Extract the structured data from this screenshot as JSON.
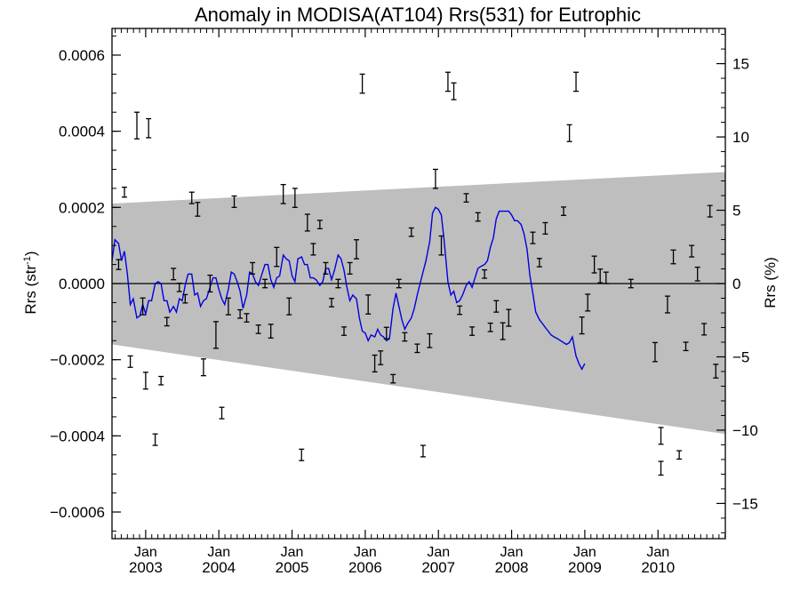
{
  "chart_data": {
    "type": "scatter",
    "title": "Anomaly in MODISA(AT104) Rrs(531) for Eutrophic",
    "ylabel_left": {
      "base": "Rrs (str",
      "sup": "-1",
      "close": ")"
    },
    "ylabel_right": "Rrs (%)",
    "xlim": [
      2002.54,
      2010.92
    ],
    "ylim": [
      -0.00067,
      0.00067
    ],
    "ylim_right": [
      -17.4,
      17.4
    ],
    "left_ticks": [
      {
        "v": 0.0006,
        "label": "0.0006"
      },
      {
        "v": 0.0004,
        "label": "0.0004"
      },
      {
        "v": 0.0002,
        "label": "0.0002"
      },
      {
        "v": 0.0,
        "label": "0.0000"
      },
      {
        "v": -0.0002,
        "label": "−0.0002"
      },
      {
        "v": -0.0004,
        "label": "−0.0004"
      },
      {
        "v": -0.0006,
        "label": "−0.0006"
      }
    ],
    "right_ticks": [
      {
        "v": 15,
        "label": "15"
      },
      {
        "v": 10,
        "label": "10"
      },
      {
        "v": 5,
        "label": "5"
      },
      {
        "v": 0,
        "label": "0"
      },
      {
        "v": -5,
        "label": "−5"
      },
      {
        "v": -10,
        "label": "−10"
      },
      {
        "v": -15,
        "label": "−15"
      }
    ],
    "x_ticks": [
      {
        "v": 2003.0,
        "month": "Jan",
        "year": "2003"
      },
      {
        "v": 2004.0,
        "month": "Jan",
        "year": "2004"
      },
      {
        "v": 2005.0,
        "month": "Jan",
        "year": "2005"
      },
      {
        "v": 2006.0,
        "month": "Jan",
        "year": "2006"
      },
      {
        "v": 2007.0,
        "month": "Jan",
        "year": "2007"
      },
      {
        "v": 2008.0,
        "month": "Jan",
        "year": "2008"
      },
      {
        "v": 2009.0,
        "month": "Jan",
        "year": "2009"
      },
      {
        "v": 2010.0,
        "month": "Jan",
        "year": "2010"
      }
    ],
    "zero_line": 0,
    "envelope": {
      "start": [
        2002.54,
        0.00021,
        -0.00016
      ],
      "end": [
        2010.92,
        0.000293,
        -0.000395
      ],
      "color": "#bebebe"
    },
    "colors": {
      "line": "#0000e0",
      "points": "#000000"
    },
    "errorbars": [
      [
        2002.63,
        5e-05,
        1.3e-05
      ],
      [
        2002.71,
        0.00024,
        1.3e-05
      ],
      [
        2002.79,
        -0.000205,
        1.5e-05
      ],
      [
        2002.88,
        0.000415,
        3.5e-05
      ],
      [
        2002.96,
        -6e-05,
        2.2e-05
      ],
      [
        2003.0,
        -0.000255,
        2.2e-05
      ],
      [
        2003.04,
        0.000408,
        2.5e-05
      ],
      [
        2003.13,
        -0.00041,
        1.5e-05
      ],
      [
        2003.21,
        -0.000255,
        1.1e-05
      ],
      [
        2003.29,
        -0.0001,
        1.1e-05
      ],
      [
        2003.38,
        2.5e-05,
        1.5e-05
      ],
      [
        2003.46,
        -1e-05,
        1.1e-05
      ],
      [
        2003.54,
        -4e-05,
        1.1e-05
      ],
      [
        2003.63,
        0.000225,
        1.5e-05
      ],
      [
        2003.71,
        0.000195,
        1.8e-05
      ],
      [
        2003.79,
        -0.00022,
        2.2e-05
      ],
      [
        2003.88,
        0.0,
        2.2e-05
      ],
      [
        2003.96,
        -0.000135,
        3.5e-05
      ],
      [
        2004.04,
        -0.00034,
        1.5e-05
      ],
      [
        2004.13,
        -6e-05,
        2.2e-05
      ],
      [
        2004.21,
        0.000215,
        1.5e-05
      ],
      [
        2004.29,
        -8e-05,
        1.1e-05
      ],
      [
        2004.38,
        -9e-05,
        1.1e-05
      ],
      [
        2004.46,
        4e-05,
        1.5e-05
      ],
      [
        2004.54,
        -0.00012,
        1.1e-05
      ],
      [
        2004.63,
        0.0,
        1.1e-05
      ],
      [
        2004.71,
        -0.000125,
        1.8e-05
      ],
      [
        2004.79,
        7e-05,
        2.5e-05
      ],
      [
        2004.88,
        0.000235,
        2.5e-05
      ],
      [
        2004.96,
        -6e-05,
        2.2e-05
      ],
      [
        2005.04,
        0.000225,
        2.5e-05
      ],
      [
        2005.13,
        -0.00045,
        1.5e-05
      ],
      [
        2005.21,
        0.00016,
        2.2e-05
      ],
      [
        2005.29,
        9e-05,
        1.5e-05
      ],
      [
        2005.38,
        0.000155,
        1.1e-05
      ],
      [
        2005.46,
        4e-05,
        1.5e-05
      ],
      [
        2005.54,
        -5e-05,
        1.1e-05
      ],
      [
        2005.63,
        0.0,
        1.1e-05
      ],
      [
        2005.71,
        -0.000125,
        1.1e-05
      ],
      [
        2005.79,
        4e-05,
        1.5e-05
      ],
      [
        2005.88,
        9e-05,
        2.5e-05
      ],
      [
        2005.96,
        0.000525,
        2.5e-05
      ],
      [
        2006.04,
        -5.5e-05,
        2.5e-05
      ],
      [
        2006.13,
        -0.00021,
        2.2e-05
      ],
      [
        2006.21,
        -0.000195,
        1.8e-05
      ],
      [
        2006.29,
        -0.00013,
        1.5e-05
      ],
      [
        2006.38,
        -0.00025,
        1.1e-05
      ],
      [
        2006.46,
        0.0,
        1.1e-05
      ],
      [
        2006.54,
        -0.00014,
        1.1e-05
      ],
      [
        2006.63,
        0.000135,
        1.1e-05
      ],
      [
        2006.71,
        -0.00017,
        1.1e-05
      ],
      [
        2006.79,
        -0.00044,
        1.5e-05
      ],
      [
        2006.88,
        -0.00015,
        1.8e-05
      ],
      [
        2006.96,
        0.000275,
        2.5e-05
      ],
      [
        2007.04,
        0.0001,
        2.5e-05
      ],
      [
        2007.13,
        0.00053,
        2.5e-05
      ],
      [
        2007.21,
        0.000505,
        2.2e-05
      ],
      [
        2007.29,
        -7e-05,
        1.1e-05
      ],
      [
        2007.38,
        0.000225,
        1.1e-05
      ],
      [
        2007.46,
        -0.000125,
        1.1e-05
      ],
      [
        2007.54,
        0.000175,
        1.1e-05
      ],
      [
        2007.63,
        2.5e-05,
        1.1e-05
      ],
      [
        2007.71,
        -0.000115,
        1.1e-05
      ],
      [
        2007.79,
        -6e-05,
        1.5e-05
      ],
      [
        2007.88,
        -0.000125,
        2.2e-05
      ],
      [
        2007.96,
        -9e-05,
        2.2e-05
      ],
      [
        2008.29,
        0.00012,
        1.5e-05
      ],
      [
        2008.38,
        5.5e-05,
        1.1e-05
      ],
      [
        2008.46,
        0.000145,
        1.5e-05
      ],
      [
        2008.71,
        0.00019,
        1.1e-05
      ],
      [
        2008.79,
        0.000395,
        2.2e-05
      ],
      [
        2008.88,
        0.00053,
        2.5e-05
      ],
      [
        2008.96,
        -0.00011,
        2.2e-05
      ],
      [
        2009.04,
        -5e-05,
        2.2e-05
      ],
      [
        2009.13,
        5e-05,
        2.2e-05
      ],
      [
        2009.21,
        2e-05,
        1.8e-05
      ],
      [
        2009.29,
        1.5e-05,
        1.5e-05
      ],
      [
        2009.63,
        0.0,
        1.1e-05
      ],
      [
        2009.96,
        -0.00018,
        2.5e-05
      ],
      [
        2010.04,
        -0.0004,
        2.2e-05
      ],
      [
        2010.04,
        -0.000485,
        1.8e-05
      ],
      [
        2010.13,
        -5.5e-05,
        2.2e-05
      ],
      [
        2010.21,
        7e-05,
        1.8e-05
      ],
      [
        2010.29,
        -0.00045,
        1.1e-05
      ],
      [
        2010.38,
        -0.000165,
        1.1e-05
      ],
      [
        2010.46,
        8.5e-05,
        1.5e-05
      ],
      [
        2010.54,
        2.5e-05,
        1.8e-05
      ],
      [
        2010.63,
        -0.00012,
        1.5e-05
      ],
      [
        2010.71,
        0.00019,
        1.5e-05
      ],
      [
        2010.79,
        -0.00023,
        1.8e-05
      ]
    ],
    "running_mean": [
      [
        2002.54,
        6e-05
      ],
      [
        2002.58,
        0.000115
      ],
      [
        2002.63,
        0.000105
      ],
      [
        2002.67,
        6e-05
      ],
      [
        2002.71,
        8.5e-05
      ],
      [
        2002.75,
        2.5e-05
      ],
      [
        2002.79,
        -5.5e-05
      ],
      [
        2002.83,
        -4e-05
      ],
      [
        2002.88,
        -9e-05
      ],
      [
        2002.92,
        -8.5e-05
      ],
      [
        2002.96,
        -5.5e-05
      ],
      [
        2003.0,
        -8e-05
      ],
      [
        2003.04,
        -4.5e-05
      ],
      [
        2003.08,
        -4.5e-05
      ],
      [
        2003.13,
        0.0
      ],
      [
        2003.17,
        5e-06
      ],
      [
        2003.21,
        0.0
      ],
      [
        2003.25,
        -4.5e-05
      ],
      [
        2003.29,
        -4.5e-05
      ],
      [
        2003.33,
        -7.5e-05
      ],
      [
        2003.38,
        -6e-05
      ],
      [
        2003.42,
        -7.5e-05
      ],
      [
        2003.46,
        -4e-05
      ],
      [
        2003.5,
        -4.5e-05
      ],
      [
        2003.54,
        -5e-06
      ],
      [
        2003.58,
        2.5e-05
      ],
      [
        2003.63,
        2.5e-05
      ],
      [
        2003.67,
        -3e-05
      ],
      [
        2003.71,
        -2.5e-05
      ],
      [
        2003.75,
        -6e-05
      ],
      [
        2003.79,
        -4.5e-05
      ],
      [
        2003.83,
        -4e-05
      ],
      [
        2003.88,
        -1e-05
      ],
      [
        2003.92,
        1.5e-05
      ],
      [
        2003.96,
        1.5e-05
      ],
      [
        2004.0,
        -1.5e-05
      ],
      [
        2004.04,
        -4e-05
      ],
      [
        2004.08,
        -5.5e-05
      ],
      [
        2004.13,
        -1.5e-05
      ],
      [
        2004.17,
        3e-05
      ],
      [
        2004.21,
        2.5e-05
      ],
      [
        2004.25,
        5e-06
      ],
      [
        2004.29,
        -2e-05
      ],
      [
        2004.33,
        -6.5e-05
      ],
      [
        2004.38,
        -3e-05
      ],
      [
        2004.42,
        3e-05
      ],
      [
        2004.46,
        2.5e-05
      ],
      [
        2004.5,
        5e-06
      ],
      [
        2004.54,
        -5e-06
      ],
      [
        2004.58,
        2e-05
      ],
      [
        2004.63,
        5e-05
      ],
      [
        2004.67,
        5e-05
      ],
      [
        2004.71,
        1e-05
      ],
      [
        2004.75,
        -1e-05
      ],
      [
        2004.79,
        1.5e-05
      ],
      [
        2004.83,
        2e-05
      ],
      [
        2004.88,
        7.5e-05
      ],
      [
        2004.92,
        6.5e-05
      ],
      [
        2004.96,
        6e-05
      ],
      [
        2005.0,
        2e-05
      ],
      [
        2005.04,
        5e-06
      ],
      [
        2005.08,
        6.5e-05
      ],
      [
        2005.13,
        7e-05
      ],
      [
        2005.17,
        5e-05
      ],
      [
        2005.21,
        5e-05
      ],
      [
        2005.25,
        1.5e-05
      ],
      [
        2005.29,
        1.5e-05
      ],
      [
        2005.33,
        1e-05
      ],
      [
        2005.38,
        -5e-06
      ],
      [
        2005.42,
        5e-06
      ],
      [
        2005.46,
        4e-05
      ],
      [
        2005.5,
        4e-05
      ],
      [
        2005.54,
        1e-05
      ],
      [
        2005.58,
        3.5e-05
      ],
      [
        2005.63,
        7.5e-05
      ],
      [
        2005.67,
        6.5e-05
      ],
      [
        2005.71,
        3.5e-05
      ],
      [
        2005.75,
        -1e-05
      ],
      [
        2005.79,
        -4.5e-05
      ],
      [
        2005.83,
        -3e-05
      ],
      [
        2005.88,
        -4e-05
      ],
      [
        2005.92,
        -9e-05
      ],
      [
        2005.96,
        -0.000125
      ],
      [
        2006.0,
        -0.00013
      ],
      [
        2006.04,
        -0.00015
      ],
      [
        2006.08,
        -0.000135
      ],
      [
        2006.13,
        -0.00014
      ],
      [
        2006.17,
        -0.00012
      ],
      [
        2006.21,
        -0.000135
      ],
      [
        2006.25,
        -0.00014
      ],
      [
        2006.29,
        -0.00015
      ],
      [
        2006.33,
        -0.000145
      ],
      [
        2006.38,
        -6.5e-05
      ],
      [
        2006.42,
        -2.5e-05
      ],
      [
        2006.46,
        -6e-05
      ],
      [
        2006.5,
        -9.5e-05
      ],
      [
        2006.54,
        -0.00012
      ],
      [
        2006.58,
        -0.000105
      ],
      [
        2006.63,
        -9e-05
      ],
      [
        2006.67,
        -6.5e-05
      ],
      [
        2006.71,
        -3e-05
      ],
      [
        2006.75,
        0.0
      ],
      [
        2006.79,
        3e-05
      ],
      [
        2006.83,
        6e-05
      ],
      [
        2006.88,
        0.00011
      ],
      [
        2006.92,
        0.000185
      ],
      [
        2006.96,
        0.0002
      ],
      [
        2007.0,
        0.000195
      ],
      [
        2007.04,
        0.00018
      ],
      [
        2007.08,
        0.00011
      ],
      [
        2007.13,
        5e-06
      ],
      [
        2007.17,
        -3e-05
      ],
      [
        2007.21,
        -2e-05
      ],
      [
        2007.25,
        -5e-05
      ],
      [
        2007.29,
        -4.5e-05
      ],
      [
        2007.33,
        -3e-05
      ],
      [
        2007.38,
        -5e-06
      ],
      [
        2007.42,
        5e-06
      ],
      [
        2007.46,
        -1e-05
      ],
      [
        2007.5,
        1.5e-05
      ],
      [
        2007.54,
        4e-05
      ],
      [
        2007.58,
        4.5e-05
      ],
      [
        2007.63,
        5e-05
      ],
      [
        2007.67,
        6e-05
      ],
      [
        2007.71,
        9.5e-05
      ],
      [
        2007.75,
        0.00012
      ],
      [
        2007.79,
        0.00017
      ],
      [
        2007.83,
        0.00019
      ],
      [
        2007.88,
        0.00019
      ],
      [
        2007.92,
        0.00019
      ],
      [
        2007.96,
        0.00019
      ],
      [
        2008.0,
        0.00018
      ],
      [
        2008.04,
        0.000165
      ],
      [
        2008.08,
        0.000165
      ],
      [
        2008.13,
        0.000155
      ],
      [
        2008.17,
        0.00013
      ],
      [
        2008.21,
        9e-05
      ],
      [
        2008.25,
        2e-05
      ],
      [
        2008.29,
        -2.5e-05
      ],
      [
        2008.33,
        -7.5e-05
      ],
      [
        2008.38,
        -9.5e-05
      ],
      [
        2008.42,
        -0.000105
      ],
      [
        2008.46,
        -0.000115
      ],
      [
        2008.5,
        -0.000125
      ],
      [
        2008.54,
        -0.000135
      ],
      [
        2008.58,
        -0.00014
      ],
      [
        2008.63,
        -0.000145
      ],
      [
        2008.67,
        -0.00015
      ],
      [
        2008.71,
        -0.000155
      ],
      [
        2008.75,
        -0.00016
      ],
      [
        2008.79,
        -0.000155
      ],
      [
        2008.83,
        -0.00014
      ],
      [
        2008.88,
        -0.00019
      ],
      [
        2008.92,
        -0.00021
      ],
      [
        2008.96,
        -0.000225
      ],
      [
        2009.0,
        -0.00021
      ]
    ]
  }
}
